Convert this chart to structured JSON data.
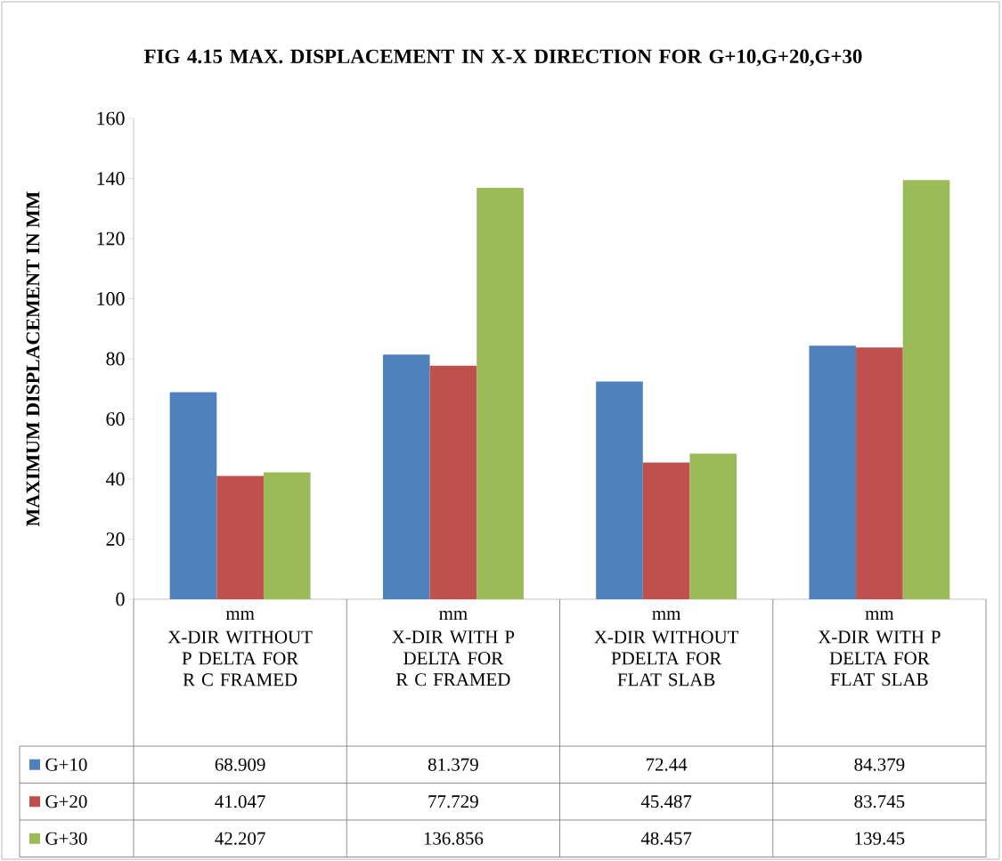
{
  "chart_data": {
    "type": "bar",
    "title": "FIG 4.15 MAX. DISPLACEMENT IN X-X DIRECTION FOR G+10,G+20,G+30",
    "ylabel": "MAXIMUM DISPLACEMENT IN MM",
    "categories": [
      "X-DIR WITHOUT P DELTA FOR R C FRAMED",
      "X-DIR WITH P DELTA FOR R C FRAMED",
      "X-DIR WITHOUT PDELTA FOR FLAT SLAB",
      "X-DIR WITH P DELTA FOR FLAT SLAB"
    ],
    "annotations": [
      "mm",
      "mm",
      "mm",
      "mm"
    ],
    "series": [
      {
        "name": "G+10",
        "color": "#4f81bd",
        "values": [
          68.909,
          81.379,
          72.44,
          84.379
        ]
      },
      {
        "name": "G+20",
        "color": "#c0504d",
        "values": [
          41.047,
          77.729,
          45.487,
          83.745
        ]
      },
      {
        "name": "G+30",
        "color": "#9bbb59",
        "values": [
          42.207,
          136.856,
          48.457,
          139.45
        ]
      }
    ],
    "ylim": [
      0,
      160
    ],
    "yticks": [
      0,
      20,
      40,
      60,
      80,
      100,
      120,
      140,
      160
    ],
    "grid": false,
    "legend": "bottom left",
    "data_labels": true
  }
}
